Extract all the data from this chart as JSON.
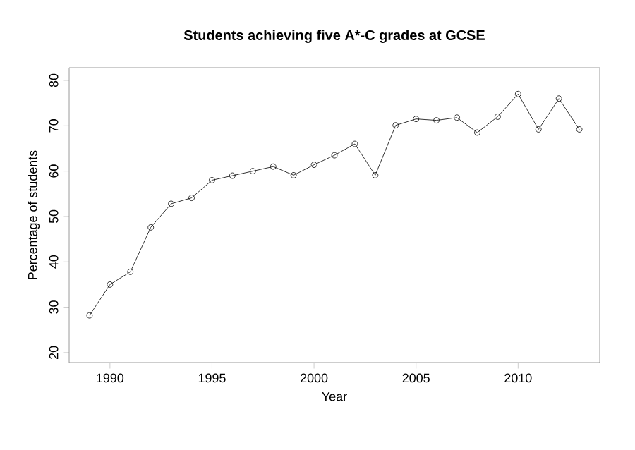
{
  "chart_data": {
    "type": "line",
    "title": "Students achieving five A*-C grades at GCSE",
    "xlabel": "Year",
    "ylabel": "Percentage of students",
    "x": [
      1989,
      1990,
      1991,
      1992,
      1993,
      1994,
      1995,
      1996,
      1997,
      1998,
      1999,
      2000,
      2001,
      2002,
      2003,
      2004,
      2005,
      2006,
      2007,
      2008,
      2009,
      2010,
      2011,
      2012,
      2013
    ],
    "series": [
      {
        "color": "#000000",
        "values": [
          28.2,
          35,
          37.8,
          47.6,
          52.8,
          54.1,
          58,
          59,
          60,
          61,
          59.1,
          61.4,
          63.5,
          66,
          59.1,
          70.1,
          71.5,
          71.2,
          71.8,
          68.5,
          72,
          77,
          69.2,
          76,
          69.2
        ]
      }
    ],
    "xlim": [
      1988,
      2014
    ],
    "ylim": [
      17.8,
      82.8
    ],
    "xticks": [
      1990,
      1995,
      2000,
      2005,
      2010
    ],
    "yticks": [
      20,
      30,
      40,
      50,
      60,
      70,
      80
    ],
    "marker": "circle",
    "line_style": "solid",
    "grid": false
  }
}
